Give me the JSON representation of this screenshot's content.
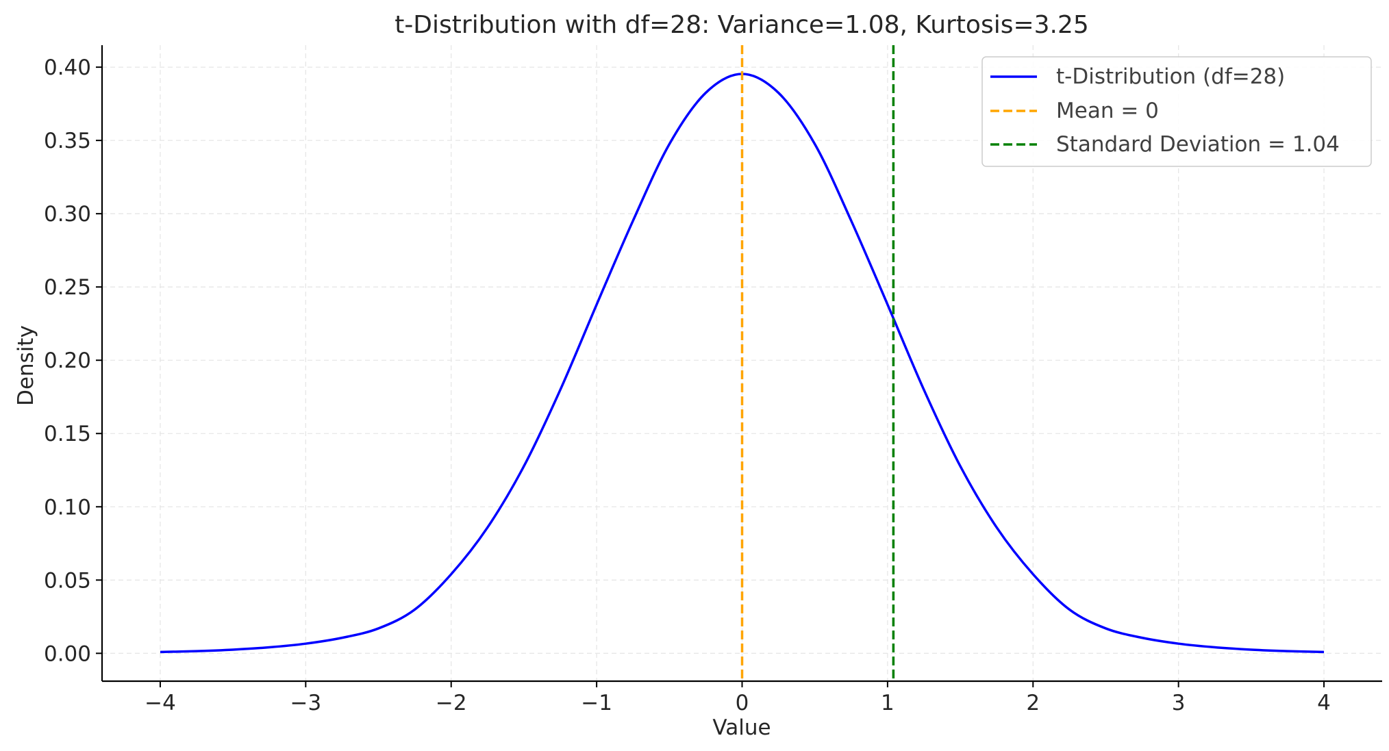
{
  "chart_data": {
    "type": "line",
    "title": "t-Distribution with df=28: Variance=1.08, Kurtosis=3.25",
    "xlabel": "Value",
    "ylabel": "Density",
    "xlim": [
      -4.4,
      4.4
    ],
    "ylim": [
      -0.019,
      0.415
    ],
    "x_ticks": [
      -4,
      -3,
      -2,
      -1,
      0,
      1,
      2,
      3,
      4
    ],
    "x_tick_labels": [
      "−4",
      "−3",
      "−2",
      "−1",
      "0",
      "1",
      "2",
      "3",
      "4"
    ],
    "y_ticks": [
      0.0,
      0.05,
      0.1,
      0.15,
      0.2,
      0.25,
      0.3,
      0.35,
      0.4
    ],
    "y_tick_labels": [
      "0.00",
      "0.05",
      "0.10",
      "0.15",
      "0.20",
      "0.25",
      "0.30",
      "0.35",
      "0.40"
    ],
    "grid": true,
    "legend_position": "top-right",
    "series": [
      {
        "name": "t-Distribution (df=28)",
        "style": "solid",
        "color": "#0000ff",
        "x": [
          -4.0,
          -3.75,
          -3.5,
          -3.25,
          -3.0,
          -2.75,
          -2.5,
          -2.25,
          -2.0,
          -1.75,
          -1.5,
          -1.25,
          -1.0,
          -0.75,
          -0.5,
          -0.25,
          0.0,
          0.25,
          0.5,
          0.75,
          1.0,
          1.25,
          1.5,
          1.75,
          2.0,
          2.25,
          2.5,
          2.75,
          3.0,
          3.25,
          3.5,
          3.75,
          4.0
        ],
        "y": [
          0.0009,
          0.0015,
          0.0025,
          0.0041,
          0.0066,
          0.0106,
          0.017,
          0.0299,
          0.054,
          0.0859,
          0.1277,
          0.1798,
          0.238,
          0.2952,
          0.3475,
          0.3825,
          0.3954,
          0.3825,
          0.3475,
          0.2952,
          0.238,
          0.1798,
          0.1277,
          0.0859,
          0.054,
          0.0299,
          0.017,
          0.0106,
          0.0066,
          0.0041,
          0.0025,
          0.0015,
          0.0009
        ]
      },
      {
        "name": "Mean = 0",
        "style": "dashed",
        "color": "#ffa500",
        "vline_x": 0
      },
      {
        "name": "Standard Deviation = 1.04",
        "style": "dashed",
        "color": "#008000",
        "vline_x": 1.04
      }
    ]
  }
}
